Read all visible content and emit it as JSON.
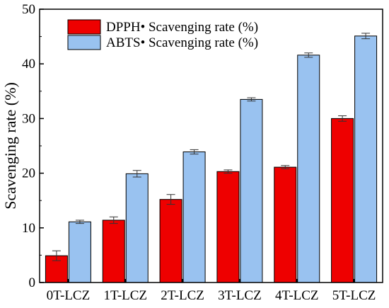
{
  "chart_data": {
    "type": "bar",
    "title": "",
    "xlabel": "",
    "ylabel": "Scavenging rate (%)",
    "ylim": [
      0,
      50
    ],
    "yticks": [
      0,
      10,
      20,
      30,
      40,
      50
    ],
    "grid": false,
    "legend_position": "top-left",
    "categories": [
      "0T-LCZ",
      "1T-LCZ",
      "2T-LCZ",
      "3T-LCZ",
      "4T-LCZ",
      "5T-LCZ"
    ],
    "series": [
      {
        "name": "DPPH• Scavenging rate (%)",
        "color": "#ee0000",
        "values": [
          4.9,
          11.4,
          15.2,
          20.3,
          21.1,
          30.0
        ],
        "errors": [
          0.9,
          0.6,
          0.9,
          0.3,
          0.3,
          0.5
        ]
      },
      {
        "name": "ABTS• Scavenging rate (%)",
        "color": "#99c2f0",
        "values": [
          11.1,
          19.9,
          23.9,
          33.5,
          41.6,
          45.1
        ],
        "errors": [
          0.3,
          0.6,
          0.4,
          0.3,
          0.4,
          0.5
        ]
      }
    ]
  }
}
